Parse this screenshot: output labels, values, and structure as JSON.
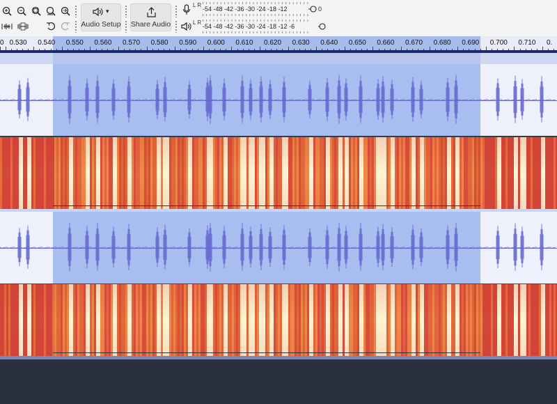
{
  "toolbar": {
    "audio_setup_label": "Audio Setup",
    "share_audio_label": "Share Audio",
    "dropdown_glyph": "▾"
  },
  "meters": {
    "record": {
      "channels": "L R",
      "scale": "-54 -48 -42 -36 -30 -24 -18 -12",
      "end_label": "0"
    },
    "playback": {
      "channels": "L R",
      "scale": "-54 -48 -42 -36 -30 -24 -18 -12  -6",
      "end_label": "0"
    }
  },
  "ruler": {
    "ticks": [
      "0",
      "0.530",
      "0.540",
      "0.550",
      "0.560",
      "0.570",
      "0.580",
      "0.590",
      "0.600",
      "0.610",
      "0.620",
      "0.630",
      "0.640",
      "0.650",
      "0.660",
      "0.670",
      "0.680",
      "0.690",
      "0.700",
      "0.710",
      "0."
    ]
  },
  "selection": {
    "start": 0.54,
    "end": 0.69
  },
  "colors": {
    "waveform": "#6569cf",
    "selection": "#a9bef0",
    "track_bg": "#eef0fb",
    "spectrogram_low": "#e2703a",
    "spectrogram_high": "#fff5d8",
    "background": "#2b3040"
  },
  "icons": {
    "zoom_in": "zoom-in-icon",
    "zoom_out": "zoom-out-icon",
    "fit_selection": "zoom-fit-selection-icon",
    "fit_project": "zoom-fit-project-icon",
    "zoom_toggle": "zoom-toggle-icon",
    "trim": "trim-audio-icon",
    "silence": "silence-audio-icon",
    "undo": "undo-icon",
    "redo": "redo-icon",
    "speaker": "speaker-icon",
    "share": "share-icon",
    "microphone": "microphone-icon"
  }
}
